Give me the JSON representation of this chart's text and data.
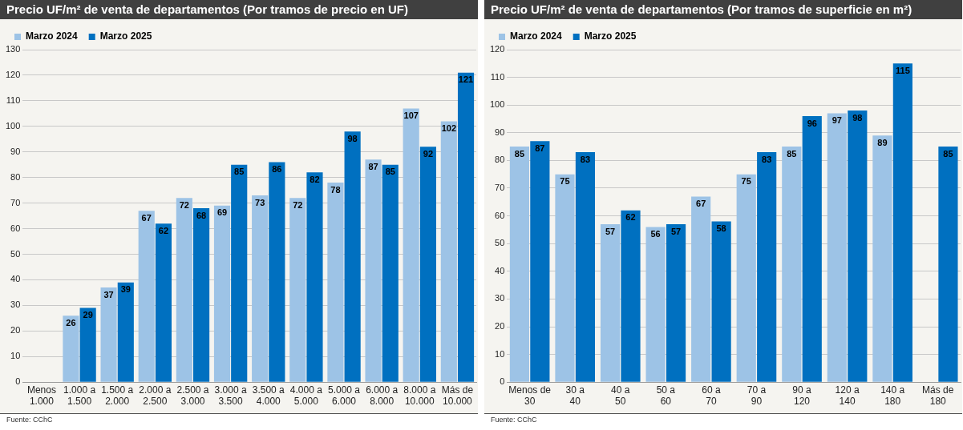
{
  "chart_data": [
    {
      "type": "bar",
      "title": "Precio UF/m² de venta de departamentos (Por tramos de precio en UF)",
      "categories": [
        "Menos 1.000",
        "1.000 a 1.500",
        "1.500 a 2.000",
        "2.000 a 2.500",
        "2.500 a 3.000",
        "3.000 a 3.500",
        "3.500 a 4.000",
        "4.000 a 5.000",
        "5.000 a 6.000",
        "6.000 a 8.000",
        "8.000 a 10.000",
        "Más de 10.000"
      ],
      "series": [
        {
          "name": "Marzo 2024",
          "color": "#9dc3e6",
          "values": [
            null,
            26,
            37,
            67,
            72,
            69,
            73,
            72,
            78,
            87,
            107,
            102
          ]
        },
        {
          "name": "Marzo 2025",
          "color": "#0070c0",
          "values": [
            null,
            29,
            39,
            62,
            68,
            85,
            86,
            82,
            98,
            85,
            92,
            121
          ]
        }
      ],
      "ylim": [
        0,
        130
      ],
      "yticks": [
        0,
        10,
        20,
        30,
        40,
        50,
        60,
        70,
        80,
        90,
        100,
        110,
        120,
        130
      ],
      "grid": "y",
      "legend": "top left",
      "data_labels": true,
      "annotations": [
        "Fuente: CChC"
      ]
    },
    {
      "type": "bar",
      "title": "Precio UF/m² de venta de departamentos (Por tramos de superficie en m²)",
      "categories": [
        "Menos de 30",
        "30 a 40",
        "40 a 50",
        "50 a 60",
        "60 a 70",
        "70 a 90",
        "90 a 120",
        "120 a 140",
        "140 a 180",
        "Más de 180"
      ],
      "series": [
        {
          "name": "Marzo 2024",
          "color": "#9dc3e6",
          "values": [
            85,
            75,
            57,
            56,
            67,
            75,
            85,
            97,
            89,
            null
          ]
        },
        {
          "name": "Marzo 2025",
          "color": "#0070c0",
          "values": [
            87,
            83,
            62,
            57,
            58,
            83,
            96,
            98,
            115,
            85
          ]
        }
      ],
      "ylim": [
        0,
        120
      ],
      "yticks": [
        0,
        10,
        20,
        30,
        40,
        50,
        60,
        70,
        80,
        90,
        100,
        110,
        120
      ],
      "grid": "y",
      "legend": "top left",
      "data_labels": true,
      "annotations": [
        "Fuente: CChC"
      ]
    }
  ]
}
